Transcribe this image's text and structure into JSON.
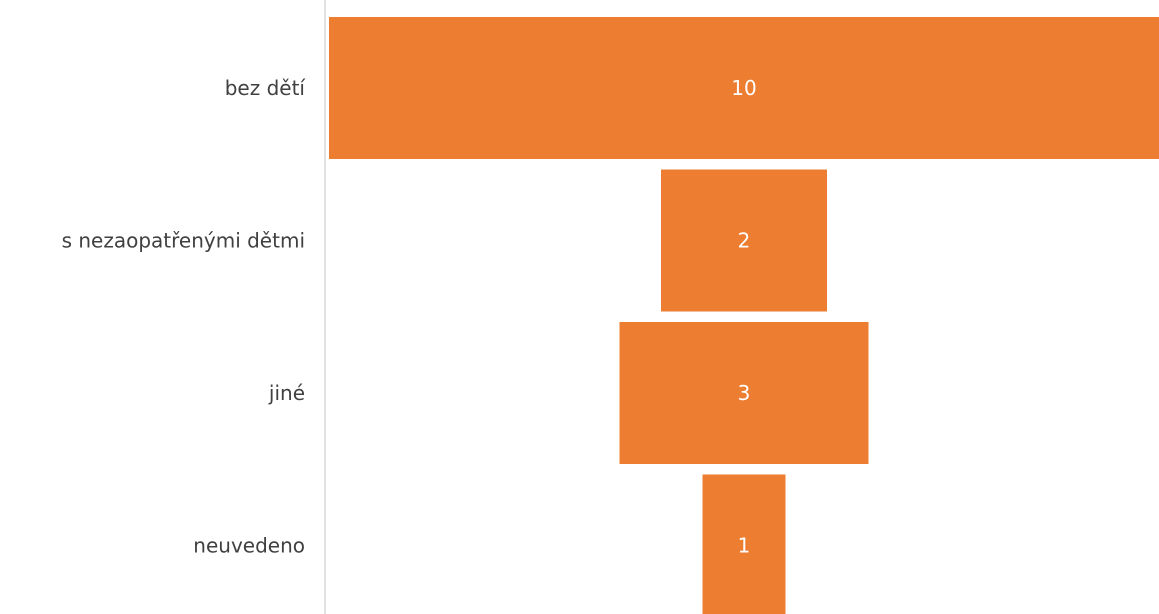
{
  "chart_data": {
    "type": "bar",
    "subtype": "funnel",
    "categories": [
      "bez dětí",
      "s nezaopatřenými dětmi",
      "jiné",
      "neuvedeno"
    ],
    "values": [
      10,
      2,
      3,
      1
    ],
    "data_labels": [
      "10",
      "2",
      "3",
      "1"
    ],
    "title": "",
    "xlabel": "",
    "ylabel": "",
    "grid": false,
    "legend": "none",
    "colors": {
      "bar": "#ED7D31",
      "axis": "#D9D9D9",
      "category_text": "#404040",
      "value_text": "#FFFFFF"
    }
  }
}
